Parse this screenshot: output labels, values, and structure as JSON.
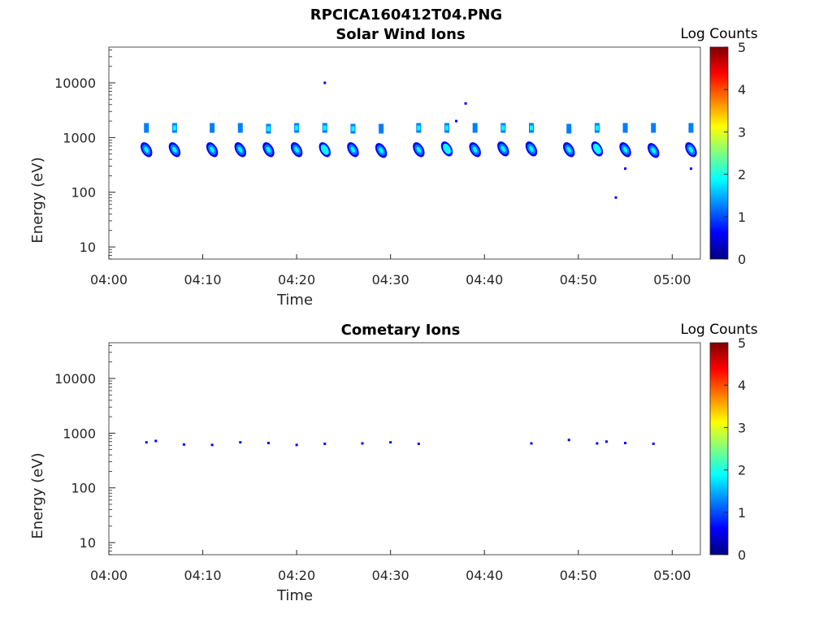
{
  "figure": {
    "title": "RPCICA160412T04.PNG"
  },
  "colors": {
    "axis": "#262626",
    "colormap": [
      "#00007f",
      "#0000ff",
      "#007fff",
      "#00ffff",
      "#7fff7f",
      "#ffff00",
      "#ff7f00",
      "#ff0000",
      "#7f0000"
    ]
  },
  "chart_data": [
    {
      "type": "heatmap",
      "title": "Solar Wind Ions",
      "xlabel": "Time",
      "ylabel": "Energy (eV)",
      "y_scale": "log",
      "xlim": [
        "04:00",
        "05:03"
      ],
      "ylim": [
        6,
        45000
      ],
      "x_ticks": [
        "04:00",
        "04:10",
        "04:20",
        "04:30",
        "04:40",
        "04:50",
        "05:00"
      ],
      "y_ticks": [
        {
          "value": 10,
          "label": "10"
        },
        {
          "value": 100,
          "label": "100"
        },
        {
          "value": 1000,
          "label": "1000"
        },
        {
          "value": 10000,
          "label": "10000"
        }
      ],
      "colorbar": {
        "label": "Log Counts",
        "range": [
          0,
          5
        ],
        "ticks": [
          "0",
          "1",
          "2",
          "3",
          "4",
          "5"
        ]
      },
      "grid": false,
      "clusters": [
        {
          "time": "04:04",
          "upper": 1500,
          "lower": 600,
          "intensity": 1.6
        },
        {
          "time": "04:07",
          "upper": 1500,
          "lower": 600,
          "intensity": 1.8
        },
        {
          "time": "04:11",
          "upper": 1500,
          "lower": 600,
          "intensity": 1.6
        },
        {
          "time": "04:14",
          "upper": 1500,
          "lower": 600,
          "intensity": 1.7
        },
        {
          "time": "04:17",
          "upper": 1450,
          "lower": 600,
          "intensity": 1.8
        },
        {
          "time": "04:20",
          "upper": 1500,
          "lower": 600,
          "intensity": 1.8
        },
        {
          "time": "04:23",
          "upper": 1500,
          "lower": 600,
          "intensity": 1.9
        },
        {
          "time": "04:26",
          "upper": 1450,
          "lower": 600,
          "intensity": 1.8
        },
        {
          "time": "04:29",
          "upper": 1450,
          "lower": 580,
          "intensity": 1.7
        },
        {
          "time": "04:33",
          "upper": 1500,
          "lower": 600,
          "intensity": 1.8
        },
        {
          "time": "04:36",
          "upper": 1500,
          "lower": 620,
          "intensity": 1.9
        },
        {
          "time": "04:39",
          "upper": 1500,
          "lower": 600,
          "intensity": 1.7
        },
        {
          "time": "04:42",
          "upper": 1500,
          "lower": 620,
          "intensity": 1.8
        },
        {
          "time": "04:45",
          "upper": 1500,
          "lower": 620,
          "intensity": 1.8
        },
        {
          "time": "04:49",
          "upper": 1450,
          "lower": 600,
          "intensity": 1.5
        },
        {
          "time": "04:52",
          "upper": 1500,
          "lower": 620,
          "intensity": 1.9
        },
        {
          "time": "04:55",
          "upper": 1500,
          "lower": 600,
          "intensity": 1.7
        },
        {
          "time": "04:58",
          "upper": 1500,
          "lower": 580,
          "intensity": 1.7
        },
        {
          "time": "05:02",
          "upper": 1500,
          "lower": 600,
          "intensity": 1.7
        }
      ],
      "isolated_points": [
        {
          "time": "04:23",
          "energy": 10000,
          "intensity": 0.5
        },
        {
          "time": "04:37",
          "energy": 2000,
          "intensity": 0.5
        },
        {
          "time": "04:38",
          "energy": 4200,
          "intensity": 0.5
        },
        {
          "time": "04:54",
          "energy": 80,
          "intensity": 0.5
        },
        {
          "time": "04:55",
          "energy": 270,
          "intensity": 0.5
        },
        {
          "time": "05:02",
          "energy": 270,
          "intensity": 0.5
        }
      ]
    },
    {
      "type": "heatmap",
      "title": "Cometary Ions",
      "xlabel": "Time",
      "ylabel": "Energy (eV)",
      "y_scale": "log",
      "xlim": [
        "04:00",
        "05:03"
      ],
      "ylim": [
        6,
        45000
      ],
      "x_ticks": [
        "04:00",
        "04:10",
        "04:20",
        "04:30",
        "04:40",
        "04:50",
        "05:00"
      ],
      "y_ticks": [
        {
          "value": 10,
          "label": "10"
        },
        {
          "value": 100,
          "label": "100"
        },
        {
          "value": 1000,
          "label": "1000"
        },
        {
          "value": 10000,
          "label": "10000"
        }
      ],
      "colorbar": {
        "label": "Log Counts",
        "range": [
          0,
          5
        ],
        "ticks": [
          "0",
          "1",
          "2",
          "3",
          "4",
          "5"
        ]
      },
      "grid": false,
      "clusters": [],
      "isolated_points": [
        {
          "time": "04:04",
          "energy": 680,
          "intensity": 0.6
        },
        {
          "time": "04:05",
          "energy": 720,
          "intensity": 0.6
        },
        {
          "time": "04:08",
          "energy": 620,
          "intensity": 0.6
        },
        {
          "time": "04:11",
          "energy": 610,
          "intensity": 0.5
        },
        {
          "time": "04:14",
          "energy": 680,
          "intensity": 0.5
        },
        {
          "time": "04:17",
          "energy": 660,
          "intensity": 0.5
        },
        {
          "time": "04:20",
          "energy": 610,
          "intensity": 0.5
        },
        {
          "time": "04:23",
          "energy": 640,
          "intensity": 0.5
        },
        {
          "time": "04:27",
          "energy": 650,
          "intensity": 0.5
        },
        {
          "time": "04:30",
          "energy": 680,
          "intensity": 0.5
        },
        {
          "time": "04:33",
          "energy": 640,
          "intensity": 0.5
        },
        {
          "time": "04:45",
          "energy": 650,
          "intensity": 0.5
        },
        {
          "time": "04:49",
          "energy": 750,
          "intensity": 0.5
        },
        {
          "time": "04:52",
          "energy": 650,
          "intensity": 0.6
        },
        {
          "time": "04:53",
          "energy": 700,
          "intensity": 0.7
        },
        {
          "time": "04:55",
          "energy": 660,
          "intensity": 0.5
        },
        {
          "time": "04:58",
          "energy": 640,
          "intensity": 0.5
        }
      ]
    }
  ]
}
